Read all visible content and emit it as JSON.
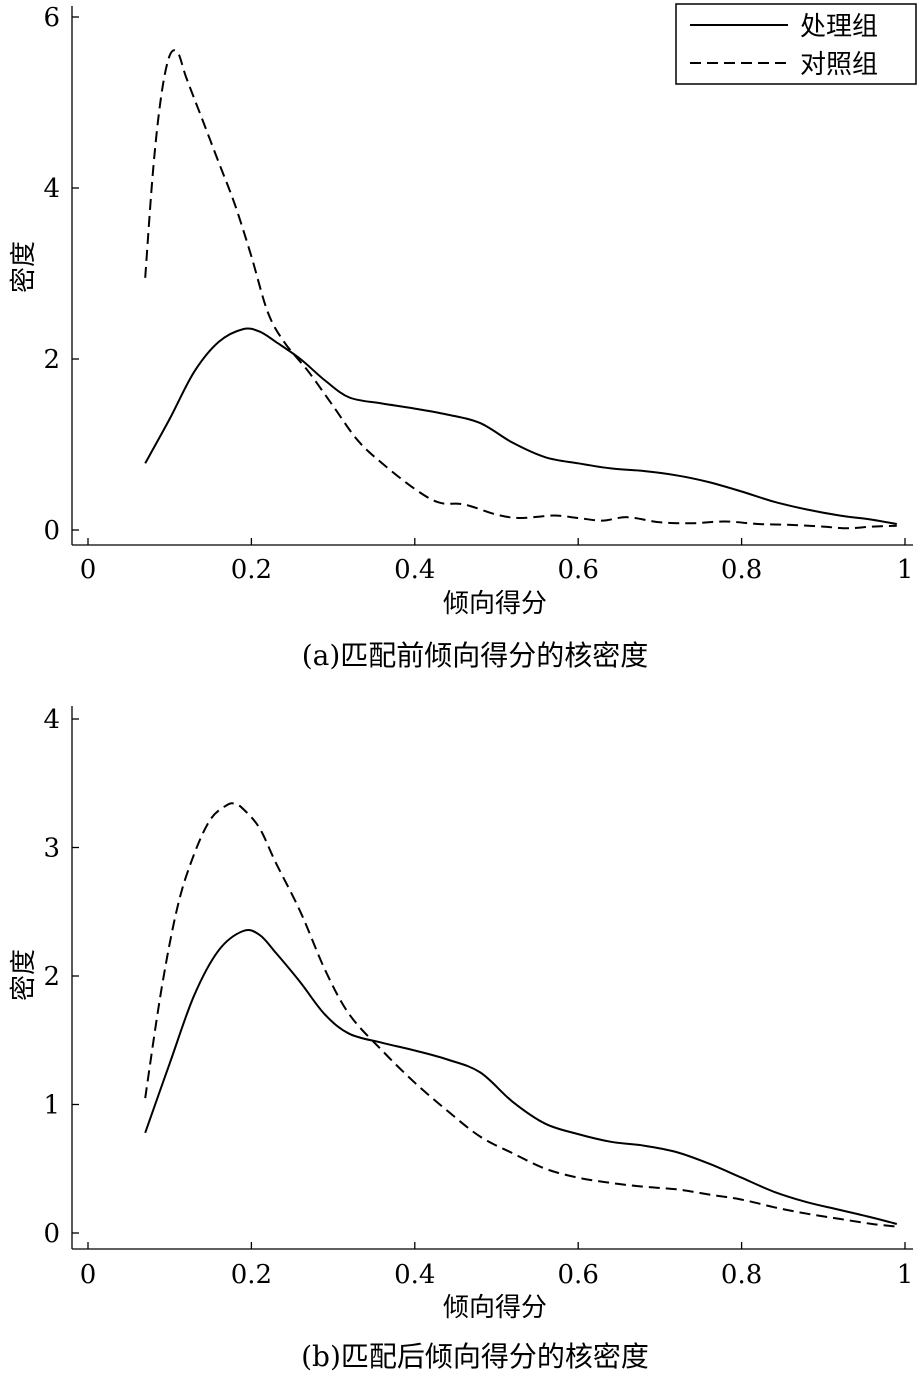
{
  "chart_data": [
    {
      "type": "line",
      "caption": "(a)匹配前倾向得分的核密度",
      "xlabel": "倾向得分",
      "ylabel": "密度",
      "xlim": [
        0,
        1
      ],
      "ylim": [
        0,
        6
      ],
      "xticks": [
        "0",
        "0.2",
        "0.4",
        "0.6",
        "0.8",
        "1"
      ],
      "yticks": [
        "0",
        "2",
        "4",
        "6"
      ],
      "legend": {
        "position": "top-right",
        "entries": [
          "处理组",
          "对照组"
        ]
      },
      "series": [
        {
          "name": "处理组",
          "style": "solid",
          "x": [
            0.07,
            0.1,
            0.13,
            0.16,
            0.19,
            0.21,
            0.23,
            0.26,
            0.29,
            0.32,
            0.36,
            0.4,
            0.44,
            0.48,
            0.52,
            0.56,
            0.6,
            0.64,
            0.68,
            0.72,
            0.76,
            0.8,
            0.84,
            0.88,
            0.92,
            0.96,
            0.99
          ],
          "y": [
            0.78,
            1.3,
            1.85,
            2.2,
            2.35,
            2.32,
            2.2,
            2.0,
            1.75,
            1.55,
            1.48,
            1.42,
            1.35,
            1.25,
            1.02,
            0.85,
            0.78,
            0.72,
            0.69,
            0.64,
            0.56,
            0.45,
            0.33,
            0.24,
            0.17,
            0.12,
            0.07
          ]
        },
        {
          "name": "对照组",
          "style": "dashed",
          "x": [
            0.07,
            0.08,
            0.09,
            0.1,
            0.11,
            0.12,
            0.14,
            0.16,
            0.18,
            0.2,
            0.22,
            0.24,
            0.27,
            0.3,
            0.33,
            0.36,
            0.4,
            0.43,
            0.46,
            0.5,
            0.53,
            0.57,
            0.6,
            0.63,
            0.66,
            0.7,
            0.74,
            0.78,
            0.82,
            0.86,
            0.9,
            0.93,
            0.96,
            0.99
          ],
          "y": [
            2.95,
            4.25,
            5.1,
            5.55,
            5.58,
            5.3,
            4.8,
            4.3,
            3.8,
            3.2,
            2.55,
            2.2,
            1.85,
            1.45,
            1.05,
            0.78,
            0.48,
            0.32,
            0.3,
            0.18,
            0.14,
            0.17,
            0.14,
            0.11,
            0.15,
            0.09,
            0.08,
            0.1,
            0.07,
            0.06,
            0.04,
            0.02,
            0.04,
            0.05
          ]
        }
      ]
    },
    {
      "type": "line",
      "caption": "(b)匹配后倾向得分的核密度",
      "xlabel": "倾向得分",
      "ylabel": "密度",
      "xlim": [
        0,
        1
      ],
      "ylim": [
        0,
        4
      ],
      "xticks": [
        "0",
        "0.2",
        "0.4",
        "0.6",
        "0.8",
        "1"
      ],
      "yticks": [
        "0",
        "1",
        "2",
        "3",
        "4"
      ],
      "series": [
        {
          "name": "处理组",
          "style": "solid",
          "x": [
            0.07,
            0.1,
            0.13,
            0.16,
            0.19,
            0.21,
            0.23,
            0.26,
            0.29,
            0.32,
            0.36,
            0.4,
            0.44,
            0.48,
            0.52,
            0.56,
            0.6,
            0.64,
            0.68,
            0.72,
            0.76,
            0.8,
            0.84,
            0.88,
            0.92,
            0.96,
            0.99
          ],
          "y": [
            0.78,
            1.32,
            1.85,
            2.2,
            2.35,
            2.32,
            2.18,
            1.95,
            1.7,
            1.55,
            1.48,
            1.42,
            1.35,
            1.25,
            1.02,
            0.85,
            0.77,
            0.71,
            0.68,
            0.63,
            0.54,
            0.43,
            0.32,
            0.24,
            0.18,
            0.12,
            0.07
          ]
        },
        {
          "name": "对照组",
          "style": "dashed",
          "x": [
            0.07,
            0.09,
            0.11,
            0.13,
            0.15,
            0.17,
            0.18,
            0.19,
            0.21,
            0.23,
            0.26,
            0.29,
            0.32,
            0.36,
            0.4,
            0.44,
            0.48,
            0.52,
            0.56,
            0.6,
            0.64,
            0.68,
            0.72,
            0.76,
            0.8,
            0.84,
            0.88,
            0.92,
            0.96,
            0.99
          ],
          "y": [
            1.05,
            1.9,
            2.55,
            2.95,
            3.22,
            3.33,
            3.34,
            3.3,
            3.15,
            2.88,
            2.5,
            2.05,
            1.7,
            1.42,
            1.17,
            0.95,
            0.75,
            0.62,
            0.5,
            0.43,
            0.39,
            0.36,
            0.34,
            0.3,
            0.26,
            0.2,
            0.15,
            0.11,
            0.07,
            0.05
          ]
        }
      ]
    }
  ]
}
